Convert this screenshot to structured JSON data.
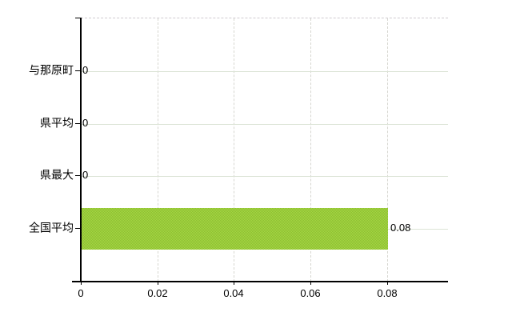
{
  "chart_data": {
    "type": "bar",
    "orientation": "horizontal",
    "title": "",
    "xlabel": "",
    "ylabel": "",
    "categories": [
      "与那原町",
      "県平均",
      "県最大",
      "全国平均"
    ],
    "values": [
      0,
      0,
      0,
      0.08
    ],
    "value_labels": [
      "0",
      "0",
      "0",
      "0.08"
    ],
    "x_ticks": [
      0,
      0.02,
      0.04,
      0.06,
      0.08
    ],
    "x_tick_labels": [
      "0",
      "0.02",
      "0.04",
      "0.06",
      "0.08"
    ],
    "xlim": [
      0,
      0.096
    ],
    "grid": true,
    "legend": false,
    "bar_color": "#9ecd3a",
    "bar_color_light": "#a8d744",
    "bar_color_dark": "#8abd31",
    "axis_color": "#000000",
    "h_gridline_color": "#dce4d6",
    "v_gridline_color": "#d6d6d0",
    "text_color": "#000000"
  }
}
